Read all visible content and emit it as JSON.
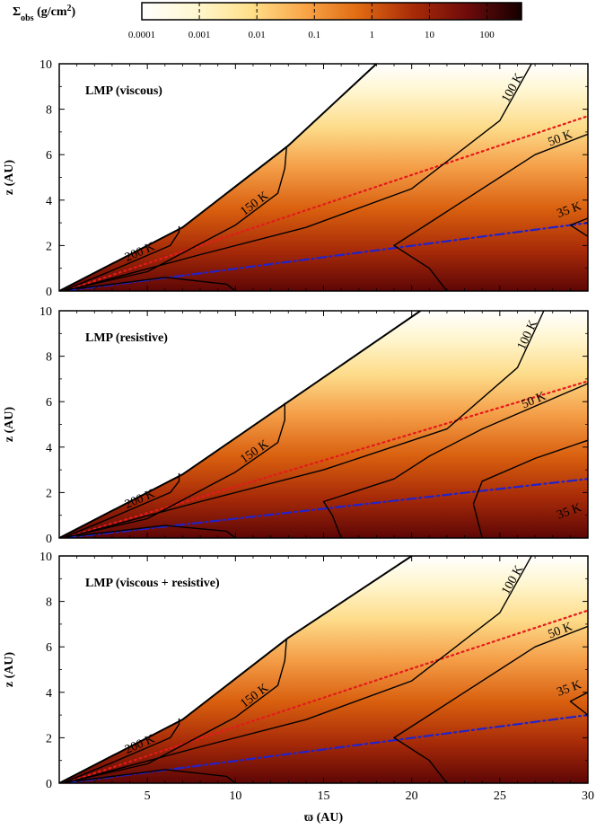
{
  "colorbar": {
    "label": "Σ",
    "label_sub": "obs",
    "label_units": " (g/cm",
    "label_sup": "2",
    "label_close": ")",
    "ticks": [
      "0.0001",
      "0.001",
      "0.01",
      "0.1",
      "1",
      "10",
      "100"
    ],
    "colors": [
      "#ffffff",
      "#fff7cf",
      "#ffe08a",
      "#f9a548",
      "#e06a12",
      "#a82b08",
      "#6e0b0b",
      "#140000"
    ]
  },
  "chart_data": [
    {
      "type": "heatmap",
      "title": "LMP (viscous)",
      "xlabel": "ϖ (AU)",
      "ylabel": "z (AU)",
      "xlim": [
        0,
        30
      ],
      "ylim": [
        0,
        10
      ],
      "xticks": [
        "5",
        "10",
        "15",
        "20",
        "25",
        "30"
      ],
      "yticks": [
        "0",
        "2",
        "4",
        "6",
        "8",
        "10"
      ],
      "surface": [
        [
          0,
          0
        ],
        [
          7,
          2.8
        ],
        [
          13,
          6.4
        ],
        [
          18,
          10
        ]
      ],
      "contours": [
        {
          "label": "200 K",
          "points": [
            [
              0.3,
              0.04
            ],
            [
              3,
              0.9
            ],
            [
              6.3,
              2.0
            ],
            [
              6.8,
              2.6
            ],
            [
              6.8,
              2.85
            ]
          ]
        },
        {
          "label": "150 K",
          "points": [
            [
              0.4,
              0.04
            ],
            [
              5,
              0.85
            ],
            [
              10,
              2.9
            ],
            [
              12.4,
              4.3
            ],
            [
              12.8,
              5.4
            ],
            [
              12.9,
              6.35
            ]
          ]
        },
        {
          "label": "100 K",
          "points": [
            [
              0.5,
              0.04
            ],
            [
              8,
              1.6
            ],
            [
              14,
              2.8
            ],
            [
              20,
              4.5
            ],
            [
              25,
              7.5
            ],
            [
              26.8,
              10
            ]
          ]
        },
        {
          "label": "50 K",
          "points": [
            [
              22,
              0
            ],
            [
              21,
              1.0
            ],
            [
              19,
              2.0
            ],
            [
              21,
              3.0
            ],
            [
              25,
              5.0
            ],
            [
              27,
              6.0
            ],
            [
              30,
              6.9
            ]
          ]
        },
        {
          "label": "35 K",
          "points": [
            [
              30,
              2.4
            ],
            [
              29,
              2.9
            ],
            [
              30,
              3.2
            ]
          ]
        },
        {
          "label": "",
          "points": [
            [
              1,
              0.1
            ],
            [
              6,
              0.6
            ],
            [
              9.5,
              0.3
            ],
            [
              10,
              0
            ]
          ]
        }
      ],
      "lines": [
        {
          "style": "dotted",
          "color": "#e41a1c",
          "points": [
            [
              0.5,
              0.05
            ],
            [
              30,
              7.7
            ]
          ]
        },
        {
          "style": "dash-dot",
          "color": "#2222cc",
          "points": [
            [
              0.5,
              0.02
            ],
            [
              30,
              3.0
            ]
          ]
        }
      ]
    },
    {
      "type": "heatmap",
      "title": "LMP (resistive)",
      "xlabel": "ϖ (AU)",
      "ylabel": "z (AU)",
      "xlim": [
        0,
        30
      ],
      "ylim": [
        0,
        10
      ],
      "xticks": [
        "5",
        "10",
        "15",
        "20",
        "25",
        "30"
      ],
      "yticks": [
        "0",
        "2",
        "4",
        "6",
        "8",
        "10"
      ],
      "surface": [
        [
          0,
          0
        ],
        [
          7,
          2.8
        ],
        [
          13,
          6.0
        ],
        [
          20.5,
          10
        ]
      ],
      "contours": [
        {
          "label": "200 K",
          "points": [
            [
              0.3,
              0.04
            ],
            [
              3,
              0.9
            ],
            [
              6.3,
              2.0
            ],
            [
              6.8,
              2.5
            ],
            [
              6.8,
              2.85
            ]
          ]
        },
        {
          "label": "150 K",
          "points": [
            [
              0.4,
              0.04
            ],
            [
              5,
              0.85
            ],
            [
              10,
              2.9
            ],
            [
              12.4,
              4.2
            ],
            [
              12.8,
              5.2
            ],
            [
              12.8,
              5.95
            ]
          ]
        },
        {
          "label": "100 K",
          "points": [
            [
              0.5,
              0.04
            ],
            [
              8,
              1.6
            ],
            [
              15,
              3.0
            ],
            [
              22,
              4.8
            ],
            [
              26,
              7.5
            ],
            [
              27.5,
              10
            ]
          ]
        },
        {
          "label": "50 K",
          "points": [
            [
              16,
              0
            ],
            [
              15.5,
              1.0
            ],
            [
              15,
              1.6
            ],
            [
              19,
              2.6
            ],
            [
              21,
              3.6
            ],
            [
              24,
              4.8
            ],
            [
              30,
              6.8
            ]
          ]
        },
        {
          "label": "35 K",
          "points": [
            [
              24,
              0
            ],
            [
              23.5,
              1.5
            ],
            [
              24,
              2.5
            ],
            [
              27,
              3.5
            ],
            [
              30,
              4.3
            ]
          ]
        },
        {
          "label": "",
          "points": [
            [
              1,
              0.1
            ],
            [
              6,
              0.55
            ],
            [
              9.5,
              0.3
            ],
            [
              10,
              0
            ]
          ]
        }
      ],
      "lines": [
        {
          "style": "dotted",
          "color": "#e41a1c",
          "points": [
            [
              0.5,
              0.05
            ],
            [
              30,
              6.9
            ]
          ]
        },
        {
          "style": "dash-dot",
          "color": "#2222cc",
          "points": [
            [
              0.5,
              0.02
            ],
            [
              30,
              2.6
            ]
          ]
        }
      ]
    },
    {
      "type": "heatmap",
      "title": "LMP (viscous + resistive)",
      "xlabel": "ϖ (AU)",
      "ylabel": "z (AU)",
      "xlim": [
        0,
        30
      ],
      "ylim": [
        0,
        10
      ],
      "xticks": [
        "5",
        "10",
        "15",
        "20",
        "25",
        "30"
      ],
      "yticks": [
        "0",
        "2",
        "4",
        "6",
        "8",
        "10"
      ],
      "surface": [
        [
          0,
          0
        ],
        [
          7,
          2.8
        ],
        [
          13,
          6.4
        ],
        [
          20,
          10
        ]
      ],
      "contours": [
        {
          "label": "200 K",
          "points": [
            [
              0.3,
              0.04
            ],
            [
              3,
              0.9
            ],
            [
              6.3,
              2.0
            ],
            [
              6.8,
              2.6
            ],
            [
              6.8,
              2.85
            ]
          ]
        },
        {
          "label": "150 K",
          "points": [
            [
              0.4,
              0.04
            ],
            [
              5,
              0.85
            ],
            [
              10,
              2.9
            ],
            [
              12.4,
              4.3
            ],
            [
              12.8,
              5.4
            ],
            [
              12.9,
              6.35
            ]
          ]
        },
        {
          "label": "100 K",
          "points": [
            [
              0.5,
              0.04
            ],
            [
              8,
              1.6
            ],
            [
              14,
              2.8
            ],
            [
              20,
              4.5
            ],
            [
              25,
              7.5
            ],
            [
              26.8,
              10
            ]
          ]
        },
        {
          "label": "50 K",
          "points": [
            [
              22,
              0
            ],
            [
              21,
              1.0
            ],
            [
              19,
              2.0
            ],
            [
              21,
              3.0
            ],
            [
              25,
              5.0
            ],
            [
              27,
              6.0
            ],
            [
              30,
              6.9
            ]
          ]
        },
        {
          "label": "35 K",
          "points": [
            [
              30,
              3.0
            ],
            [
              29,
              3.6
            ],
            [
              30,
              4.0
            ]
          ]
        },
        {
          "label": "",
          "points": [
            [
              1,
              0.1
            ],
            [
              6,
              0.6
            ],
            [
              9.5,
              0.3
            ],
            [
              10,
              0
            ]
          ]
        }
      ],
      "lines": [
        {
          "style": "dotted",
          "color": "#e41a1c",
          "points": [
            [
              0.5,
              0.05
            ],
            [
              30,
              7.6
            ]
          ]
        },
        {
          "style": "dash-dot",
          "color": "#2222cc",
          "points": [
            [
              0.5,
              0.02
            ],
            [
              30,
              3.0
            ]
          ]
        }
      ]
    }
  ]
}
